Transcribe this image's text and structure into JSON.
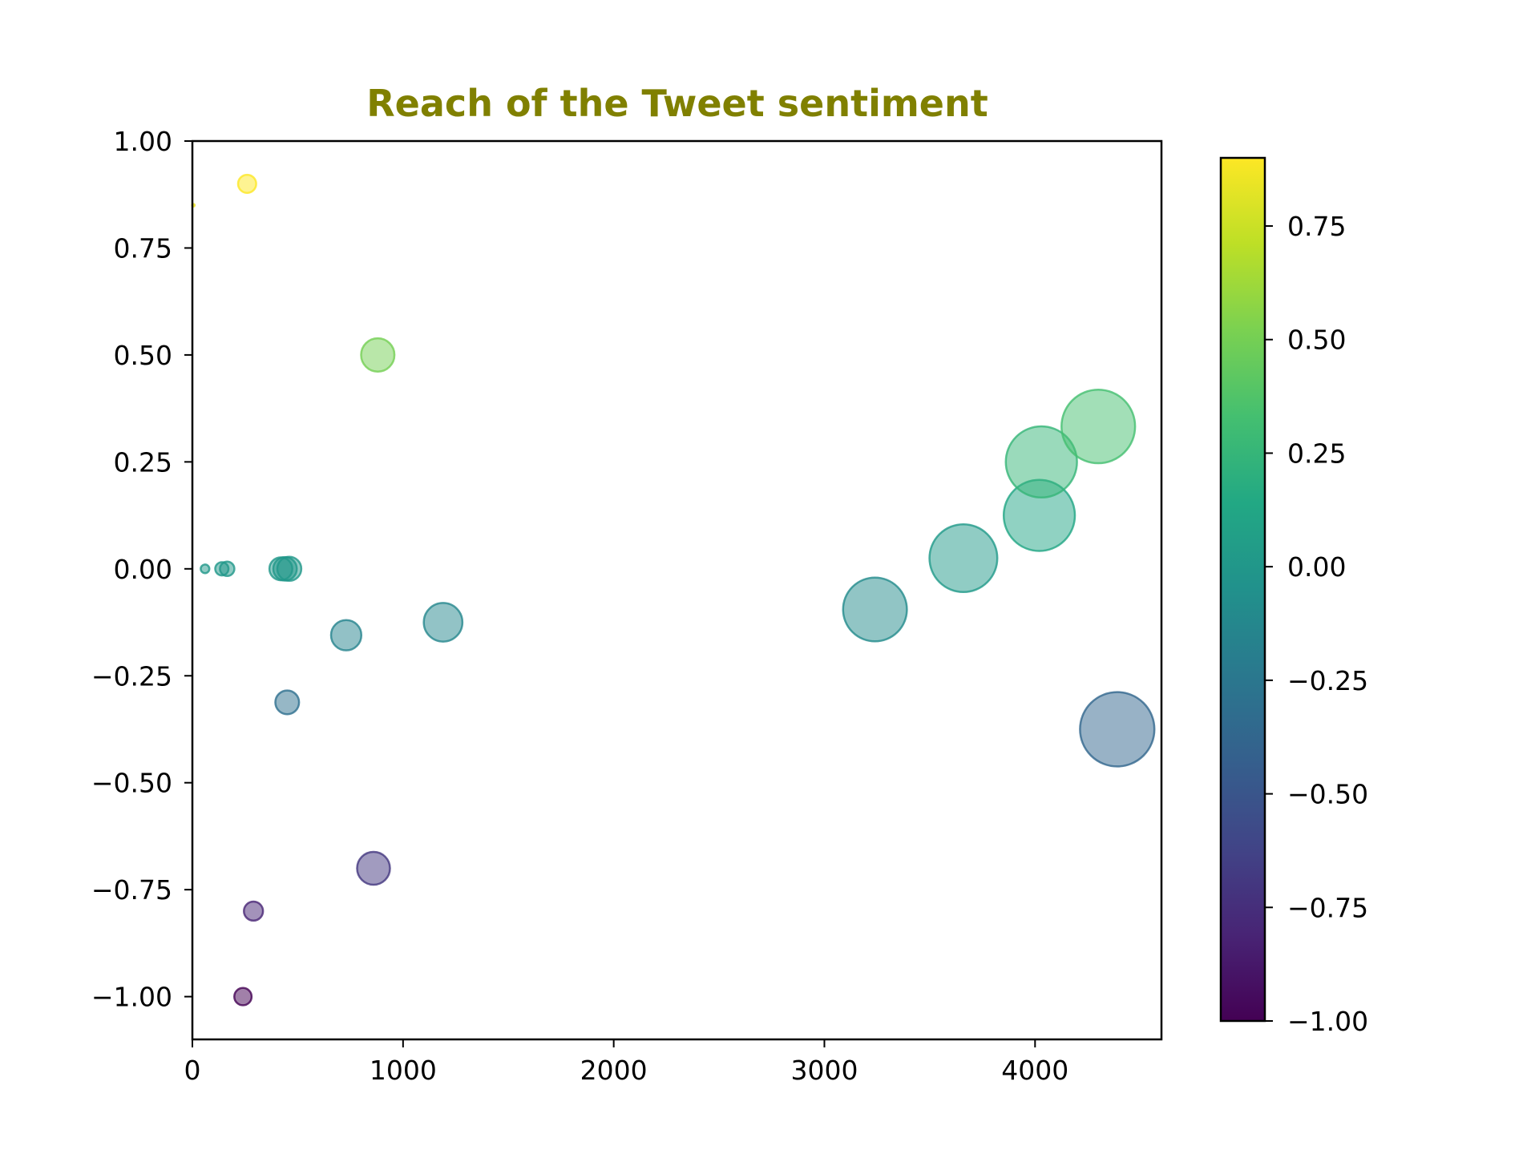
{
  "chart_data": {
    "type": "scatter",
    "title": "Reach of the Tweet sentiment",
    "title_color": "#808000",
    "xlabel": "",
    "ylabel": "",
    "xlim": [
      0,
      4600
    ],
    "ylim": [
      -1.1,
      1.0
    ],
    "xticks": [
      0,
      1000,
      2000,
      3000,
      4000
    ],
    "xtick_labels": [
      "0",
      "1000",
      "2000",
      "3000",
      "4000"
    ],
    "yticks": [
      1.0,
      0.75,
      0.5,
      0.25,
      0.0,
      -0.25,
      -0.5,
      -0.75,
      -1.0
    ],
    "ytick_labels": [
      "1.00",
      "0.75",
      "0.50",
      "0.25",
      "0.00",
      "−0.25",
      "−0.50",
      "−0.75",
      "−1.00"
    ],
    "grid": false,
    "marker_alpha": 0.5,
    "note_size": "marker area proportional to x value",
    "colormap": "viridis",
    "colorbar": {
      "range": [
        -1.0,
        0.9
      ],
      "ticks": [
        0.75,
        0.5,
        0.25,
        0.0,
        -0.25,
        -0.5,
        -0.75,
        -1.0
      ],
      "tick_labels": [
        "0.75",
        "0.50",
        "0.25",
        "0.00",
        "−0.25",
        "−0.50",
        "−0.75",
        "−1.00"
      ]
    },
    "points": [
      {
        "x": 5,
        "y": 0.85
      },
      {
        "x": 60,
        "y": 0.0
      },
      {
        "x": 140,
        "y": 0.0
      },
      {
        "x": 165,
        "y": 0.0
      },
      {
        "x": 240,
        "y": -1.0
      },
      {
        "x": 260,
        "y": 0.9
      },
      {
        "x": 290,
        "y": -0.8
      },
      {
        "x": 420,
        "y": 0.0
      },
      {
        "x": 440,
        "y": 0.0
      },
      {
        "x": 450,
        "y": -0.312
      },
      {
        "x": 460,
        "y": 0.0
      },
      {
        "x": 730,
        "y": -0.155
      },
      {
        "x": 860,
        "y": -0.7
      },
      {
        "x": 880,
        "y": 0.5
      },
      {
        "x": 1190,
        "y": -0.125
      },
      {
        "x": 3240,
        "y": -0.095
      },
      {
        "x": 3660,
        "y": 0.025
      },
      {
        "x": 4020,
        "y": 0.125
      },
      {
        "x": 4030,
        "y": 0.25
      },
      {
        "x": 4300,
        "y": 0.333
      },
      {
        "x": 4390,
        "y": -0.375
      }
    ]
  }
}
